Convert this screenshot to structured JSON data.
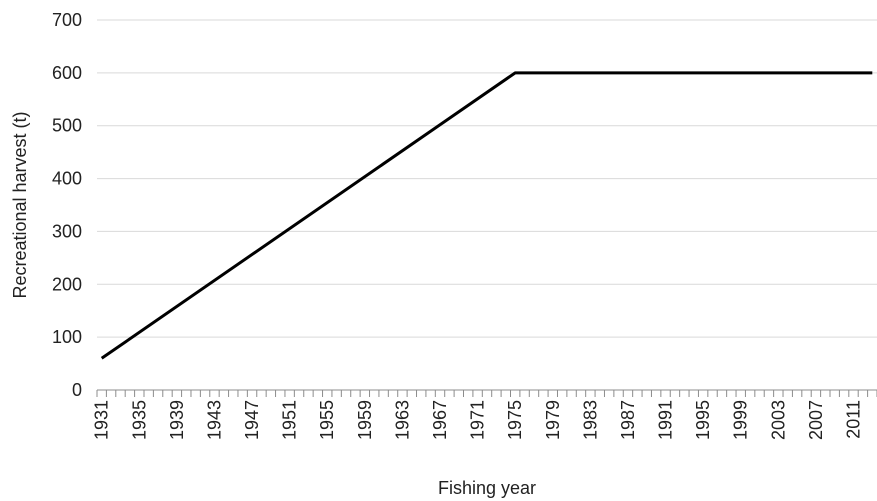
{
  "chart_data": {
    "type": "line",
    "xlabel": "Fishing year",
    "ylabel": "Recreational harvest (t)",
    "xlim": [
      1931,
      2013
    ],
    "ylim": [
      0,
      700
    ],
    "y_ticks": [
      "0",
      "100",
      "200",
      "300",
      "400",
      "500",
      "600",
      "700"
    ],
    "x_tick_labels": [
      "1931",
      "1935",
      "1939",
      "1943",
      "1947",
      "1951",
      "1955",
      "1959",
      "1963",
      "1967",
      "1971",
      "1975",
      "1979",
      "1983",
      "1987",
      "1991",
      "1995",
      "1999",
      "2003",
      "2007",
      "2011"
    ],
    "grid": "horizontal",
    "legend": "none",
    "series": [
      {
        "color": "#000000",
        "points": [
          {
            "x": 1931,
            "y": 60
          },
          {
            "x": 1975,
            "y": 600
          },
          {
            "x": 2013,
            "y": 600
          }
        ]
      }
    ]
  }
}
